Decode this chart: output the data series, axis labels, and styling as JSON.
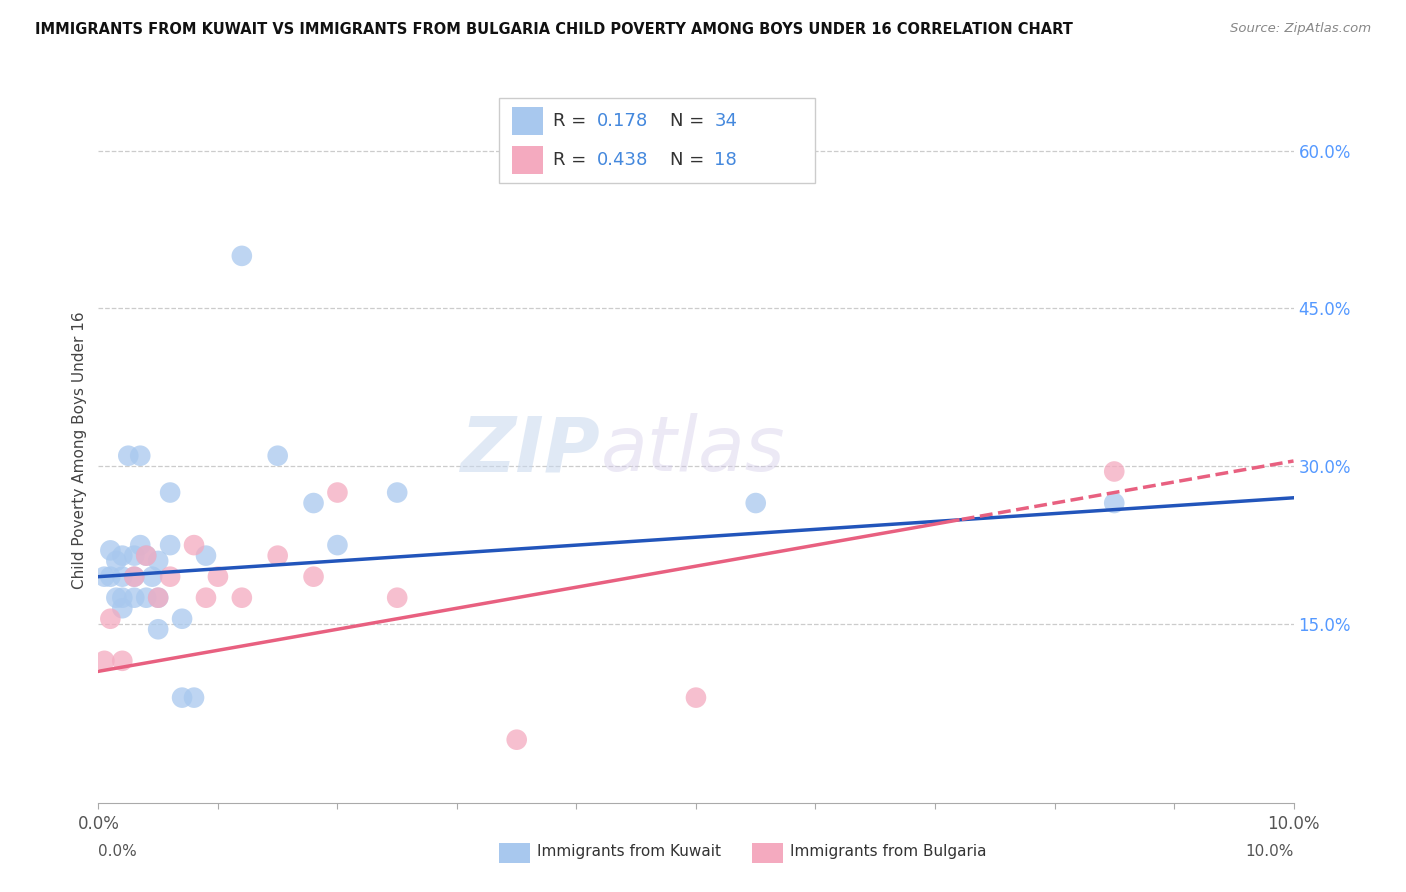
{
  "title": "IMMIGRANTS FROM KUWAIT VS IMMIGRANTS FROM BULGARIA CHILD POVERTY AMONG BOYS UNDER 16 CORRELATION CHART",
  "source": "Source: ZipAtlas.com",
  "ylabel": "Child Poverty Among Boys Under 16",
  "xlim": [
    0.0,
    0.1
  ],
  "ylim": [
    -0.02,
    0.65
  ],
  "ytick_vals_right": [
    0.15,
    0.3,
    0.45,
    0.6
  ],
  "ytick_labels_right": [
    "15.0%",
    "30.0%",
    "45.0%",
    "60.0%"
  ],
  "xtick_vals": [
    0.0,
    0.01,
    0.02,
    0.03,
    0.04,
    0.05,
    0.06,
    0.07,
    0.08,
    0.09,
    0.1
  ],
  "kuwait_color": "#A8C8EE",
  "bulgaria_color": "#F4AABF",
  "kuwait_line_color": "#2255BB",
  "bulgaria_line_color": "#E86080",
  "kuwait_R": 0.178,
  "kuwait_N": 34,
  "bulgaria_R": 0.438,
  "bulgaria_N": 18,
  "legend_label_kuwait": "Immigrants from Kuwait",
  "legend_label_bulgaria": "Immigrants from Bulgaria",
  "kuwait_x": [
    0.0005,
    0.001,
    0.001,
    0.0015,
    0.0015,
    0.002,
    0.002,
    0.002,
    0.002,
    0.0025,
    0.003,
    0.003,
    0.003,
    0.0035,
    0.0035,
    0.004,
    0.004,
    0.0045,
    0.005,
    0.005,
    0.005,
    0.006,
    0.006,
    0.007,
    0.007,
    0.008,
    0.009,
    0.012,
    0.015,
    0.018,
    0.02,
    0.025,
    0.055,
    0.085
  ],
  "kuwait_y": [
    0.195,
    0.195,
    0.22,
    0.175,
    0.21,
    0.165,
    0.175,
    0.195,
    0.215,
    0.31,
    0.175,
    0.195,
    0.215,
    0.31,
    0.225,
    0.175,
    0.215,
    0.195,
    0.145,
    0.175,
    0.21,
    0.225,
    0.275,
    0.08,
    0.155,
    0.08,
    0.215,
    0.5,
    0.31,
    0.265,
    0.225,
    0.275,
    0.265,
    0.265
  ],
  "bulgaria_x": [
    0.0005,
    0.001,
    0.002,
    0.003,
    0.004,
    0.005,
    0.006,
    0.008,
    0.009,
    0.01,
    0.012,
    0.015,
    0.018,
    0.02,
    0.025,
    0.035,
    0.05,
    0.085
  ],
  "bulgaria_y": [
    0.115,
    0.155,
    0.115,
    0.195,
    0.215,
    0.175,
    0.195,
    0.225,
    0.175,
    0.195,
    0.175,
    0.215,
    0.195,
    0.275,
    0.175,
    0.04,
    0.08,
    0.295
  ]
}
